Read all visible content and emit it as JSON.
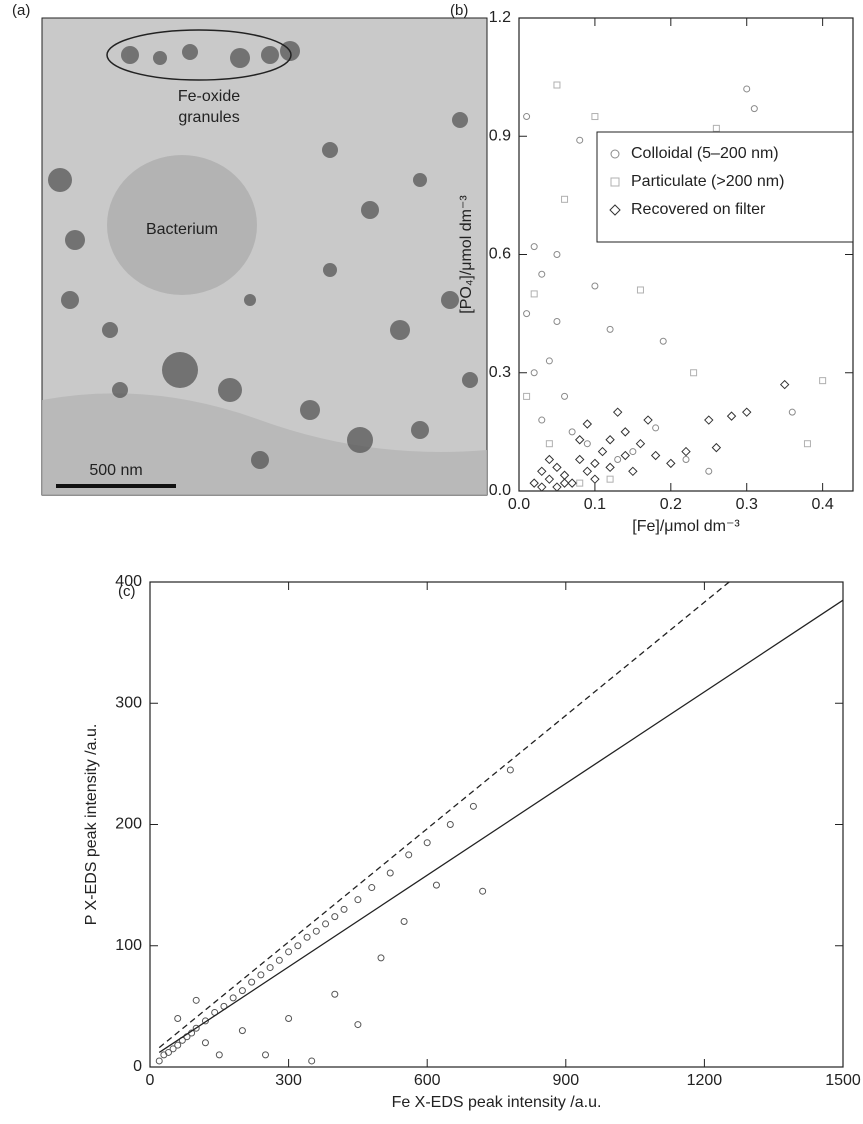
{
  "image_panel": {
    "panel_label": "(a)",
    "granule_label": [
      "Fe-oxide",
      "granules"
    ],
    "cell_label": "Bacterium",
    "scale_bar": "500 nm"
  },
  "chart_data": [
    {
      "type": "scatter",
      "panel_label": "(b)",
      "x_label": "[Fe]/μmol dm⁻³",
      "y_label": "[PO₄]/μmol dm⁻³",
      "xlim": [
        0,
        0.44
      ],
      "ylim": [
        0,
        1.2
      ],
      "xticks": [
        {
          "value": 0,
          "label": "0.0"
        },
        0.1,
        0.2,
        0.3,
        0.4
      ],
      "yticks": [
        {
          "value": 0,
          "label": "0.0"
        },
        0.3,
        0.6,
        0.9,
        1.2
      ],
      "legend": "upper right",
      "series": [
        {
          "name": "Colloidal (5–200 nm)",
          "marker": "circle",
          "color": "#8a8a8a",
          "x": [
            0.01,
            0.02,
            0.01,
            0.03,
            0.05,
            0.08,
            0.04,
            0.06,
            0.1,
            0.12,
            0.02,
            0.07,
            0.15,
            0.19,
            0.3,
            0.31,
            0.22,
            0.25,
            0.36,
            0.09,
            0.13,
            0.03,
            0.05,
            0.18
          ],
          "values": [
            0.95,
            0.62,
            0.45,
            0.55,
            0.43,
            0.89,
            0.33,
            0.24,
            0.52,
            0.41,
            0.3,
            0.15,
            0.1,
            0.38,
            1.02,
            0.97,
            0.08,
            0.05,
            0.2,
            0.12,
            0.08,
            0.18,
            0.6,
            0.16
          ]
        },
        {
          "name": "Particulate (>200 nm)",
          "marker": "square",
          "color": "#b0b0b0",
          "x": [
            0.05,
            0.1,
            0.26,
            0.33,
            0.2,
            0.01,
            0.04,
            0.14,
            0.38,
            0.42,
            0.08,
            0.12,
            0.28,
            0.23,
            0.16,
            0.06,
            0.4,
            0.02
          ],
          "values": [
            1.03,
            0.95,
            0.92,
            0.7,
            0.9,
            0.24,
            0.12,
            0.68,
            0.12,
            0.65,
            0.02,
            0.03,
            0.78,
            0.3,
            0.51,
            0.74,
            0.28,
            0.5
          ]
        },
        {
          "name": "Recovered on filter",
          "marker": "diamond",
          "color": "#333333",
          "x": [
            0.02,
            0.03,
            0.04,
            0.05,
            0.06,
            0.07,
            0.08,
            0.09,
            0.1,
            0.11,
            0.12,
            0.13,
            0.14,
            0.15,
            0.16,
            0.17,
            0.18,
            0.2,
            0.22,
            0.25,
            0.26,
            0.28,
            0.3,
            0.35,
            0.05,
            0.04,
            0.1,
            0.12,
            0.08,
            0.06,
            0.03,
            0.14,
            0.09
          ],
          "values": [
            0.02,
            0.05,
            0.03,
            0.06,
            0.04,
            0.02,
            0.08,
            0.05,
            0.07,
            0.1,
            0.13,
            0.2,
            0.15,
            0.05,
            0.12,
            0.18,
            0.09,
            0.07,
            0.1,
            0.18,
            0.11,
            0.19,
            0.2,
            0.27,
            0.01,
            0.08,
            0.03,
            0.06,
            0.13,
            0.02,
            0.01,
            0.09,
            0.17
          ]
        }
      ]
    },
    {
      "type": "scatter",
      "panel_label": "(c)",
      "x_label": "Fe X-EDS peak intensity /a.u.",
      "y_label": "P X-EDS peak intensity /a.u.",
      "xlim": [
        0,
        1500
      ],
      "ylim": [
        0,
        400
      ],
      "xticks": [
        0,
        300,
        600,
        900,
        1200,
        1500
      ],
      "yticks": [
        0,
        100,
        200,
        300,
        400
      ],
      "series": [
        {
          "marker": "circle",
          "color": "#555555",
          "x": [
            20,
            30,
            40,
            50,
            60,
            70,
            80,
            90,
            100,
            120,
            140,
            160,
            180,
            200,
            220,
            240,
            260,
            280,
            300,
            320,
            340,
            360,
            380,
            400,
            420,
            450,
            480,
            520,
            560,
            600,
            650,
            700,
            780,
            60,
            120,
            200,
            250,
            300,
            400,
            450,
            500,
            350,
            150,
            100,
            620,
            720,
            550
          ],
          "values": [
            5,
            10,
            12,
            15,
            18,
            22,
            25,
            28,
            32,
            38,
            45,
            50,
            57,
            63,
            70,
            76,
            82,
            88,
            95,
            100,
            107,
            112,
            118,
            124,
            130,
            138,
            148,
            160,
            175,
            185,
            200,
            215,
            245,
            40,
            20,
            30,
            10,
            40,
            60,
            35,
            90,
            5,
            10,
            55,
            150,
            145,
            120
          ]
        },
        {
          "marker": "line",
          "style": "solid",
          "color": "#222222",
          "x": [
            20,
            1500
          ],
          "values": [
            12,
            385
          ]
        },
        {
          "marker": "line",
          "style": "dashed",
          "color": "#222222",
          "x": [
            20,
            1260
          ],
          "values": [
            16,
            402
          ]
        }
      ]
    }
  ]
}
